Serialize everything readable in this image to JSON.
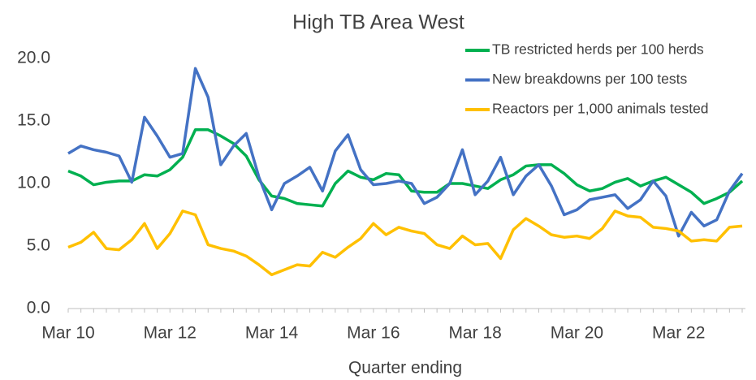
{
  "chart_data": {
    "type": "line",
    "title": "High TB Area West",
    "x_label": "Quarter ending",
    "categories": [
      "Mar 10",
      null,
      null,
      null,
      null,
      null,
      null,
      null,
      "Mar 12",
      null,
      null,
      null,
      null,
      null,
      null,
      null,
      "Mar 14",
      null,
      null,
      null,
      null,
      null,
      null,
      null,
      "Mar 16",
      null,
      null,
      null,
      null,
      null,
      null,
      null,
      "Mar 18",
      null,
      null,
      null,
      null,
      null,
      null,
      null,
      "Mar 20",
      null,
      null,
      null,
      null,
      null,
      null,
      null,
      "Mar 22",
      null,
      null,
      null,
      null,
      null
    ],
    "series": [
      {
        "name": "TB restricted herds per 100 herds",
        "color": "#00b050",
        "values": [
          11.0,
          10.6,
          9.9,
          10.1,
          10.2,
          10.2,
          10.7,
          10.6,
          11.1,
          12.1,
          14.3,
          14.3,
          13.8,
          13.2,
          12.2,
          10.3,
          9.0,
          8.8,
          8.4,
          8.3,
          8.2,
          10.0,
          11.0,
          10.5,
          10.3,
          10.8,
          10.7,
          9.4,
          9.3,
          9.3,
          10.0,
          10.0,
          9.8,
          9.6,
          10.3,
          10.7,
          11.4,
          11.5,
          11.5,
          10.8,
          9.9,
          9.4,
          9.6,
          10.1,
          10.4,
          9.8,
          10.2,
          10.5,
          9.9,
          9.3,
          8.4,
          8.8,
          9.3,
          10.2
        ]
      },
      {
        "name": "New breakdowns per 100 tests",
        "color": "#4472c4",
        "values": [
          12.4,
          13.0,
          12.7,
          12.5,
          12.2,
          10.1,
          15.3,
          13.8,
          12.1,
          12.4,
          19.2,
          16.9,
          11.5,
          13.0,
          14.0,
          10.5,
          7.9,
          10.0,
          10.6,
          11.3,
          9.4,
          12.6,
          13.9,
          11.1,
          9.9,
          10.0,
          10.2,
          10.0,
          8.4,
          8.9,
          10.0,
          12.7,
          9.1,
          10.2,
          12.1,
          9.1,
          10.6,
          11.5,
          9.8,
          7.5,
          7.9,
          8.7,
          8.9,
          9.1,
          8.0,
          8.7,
          10.2,
          9.0,
          5.8,
          7.7,
          6.6,
          7.1,
          9.4,
          10.8
        ]
      },
      {
        "name": "Reactors per 1,000 animals tested",
        "color": "#ffc000",
        "values": [
          4.9,
          5.3,
          6.1,
          4.8,
          4.7,
          5.5,
          6.8,
          4.8,
          6.0,
          7.8,
          7.5,
          5.1,
          4.8,
          4.6,
          4.2,
          3.5,
          2.7,
          3.1,
          3.5,
          3.4,
          4.5,
          4.1,
          4.9,
          5.6,
          6.8,
          5.9,
          6.5,
          6.2,
          6.0,
          5.1,
          4.8,
          5.8,
          5.1,
          5.2,
          4.0,
          6.3,
          7.2,
          6.6,
          5.9,
          5.7,
          5.8,
          5.6,
          6.4,
          7.8,
          7.4,
          7.3,
          6.5,
          6.4,
          6.2,
          5.4,
          5.5,
          5.4,
          6.5,
          6.6
        ]
      }
    ],
    "ylim": [
      0,
      20
    ],
    "yticks": [
      {
        "value": 0,
        "label": "0.0"
      },
      {
        "value": 5,
        "label": "5.0"
      },
      {
        "value": 10,
        "label": "10.0"
      },
      {
        "value": 15,
        "label": "15.0"
      },
      {
        "value": 20,
        "label": "20.0"
      }
    ],
    "grid": false,
    "legend": "upper right"
  }
}
